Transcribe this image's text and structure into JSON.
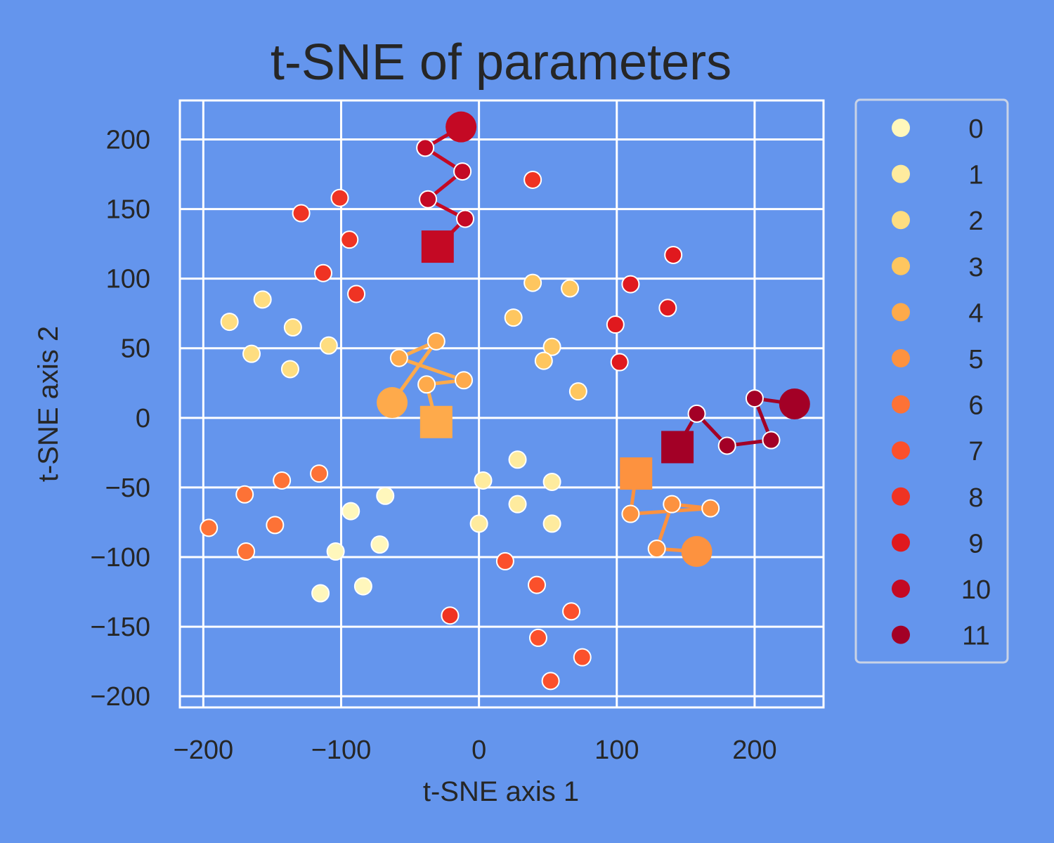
{
  "chart_data": {
    "type": "scatter",
    "title": "t-SNE of parameters",
    "xlabel": "t-SNE axis 1",
    "ylabel": "t-SNE axis 2",
    "xlim": [
      -217,
      250
    ],
    "ylim": [
      -208,
      228
    ],
    "xticks": [
      -200,
      -100,
      0,
      100,
      200
    ],
    "yticks": [
      -200,
      -150,
      -100,
      -50,
      0,
      50,
      100,
      150,
      200
    ],
    "xtick_labels": [
      "−200",
      "−100",
      "0",
      "100",
      "200"
    ],
    "ytick_labels": [
      "−200",
      "−150",
      "−100",
      "−50",
      "0",
      "50",
      "100",
      "150",
      "200"
    ],
    "grid": true,
    "legend_position": "outside-right",
    "background_color": "#6495ed",
    "legend": {
      "entries": [
        {
          "label": "0",
          "color": "#fff7bc"
        },
        {
          "label": "1",
          "color": "#feeb9e"
        },
        {
          "label": "2",
          "color": "#fedd80"
        },
        {
          "label": "3",
          "color": "#fec65f"
        },
        {
          "label": "4",
          "color": "#feaa4b"
        },
        {
          "label": "5",
          "color": "#fd923f"
        },
        {
          "label": "6",
          "color": "#fd7236"
        },
        {
          "label": "7",
          "color": "#fb502b"
        },
        {
          "label": "8",
          "color": "#ef3323"
        },
        {
          "label": "9",
          "color": "#e0191e"
        },
        {
          "label": "10",
          "color": "#c40924"
        },
        {
          "label": "11",
          "color": "#a30026"
        }
      ]
    },
    "points": [
      {
        "x": -115,
        "y": -126,
        "class": 0
      },
      {
        "x": -84,
        "y": -121,
        "class": 0
      },
      {
        "x": -72,
        "y": -91,
        "class": 0
      },
      {
        "x": -104,
        "y": -96,
        "class": 0
      },
      {
        "x": -93,
        "y": -67,
        "class": 0
      },
      {
        "x": -68,
        "y": -56,
        "class": 0
      },
      {
        "x": 3,
        "y": -45,
        "class": 1
      },
      {
        "x": 28,
        "y": -30,
        "class": 1
      },
      {
        "x": 53,
        "y": -46,
        "class": 1
      },
      {
        "x": 28,
        "y": -62,
        "class": 1
      },
      {
        "x": 0,
        "y": -76,
        "class": 1
      },
      {
        "x": 53,
        "y": -76,
        "class": 1
      },
      {
        "x": -181,
        "y": 69,
        "class": 2
      },
      {
        "x": -157,
        "y": 85,
        "class": 2
      },
      {
        "x": -165,
        "y": 46,
        "class": 2
      },
      {
        "x": -135,
        "y": 65,
        "class": 2
      },
      {
        "x": -137,
        "y": 35,
        "class": 2
      },
      {
        "x": -109,
        "y": 52,
        "class": 2
      },
      {
        "x": 39,
        "y": 97,
        "class": 3
      },
      {
        "x": 66,
        "y": 93,
        "class": 3
      },
      {
        "x": 25,
        "y": 72,
        "class": 3
      },
      {
        "x": 53,
        "y": 51,
        "class": 3
      },
      {
        "x": 47,
        "y": 41,
        "class": 3
      },
      {
        "x": 72,
        "y": 19,
        "class": 3
      },
      {
        "x": -170,
        "y": -55,
        "class": 6
      },
      {
        "x": -143,
        "y": -45,
        "class": 6
      },
      {
        "x": -116,
        "y": -40,
        "class": 6
      },
      {
        "x": -196,
        "y": -79,
        "class": 6
      },
      {
        "x": -148,
        "y": -77,
        "class": 6
      },
      {
        "x": -169,
        "y": -96,
        "class": 6
      },
      {
        "x": 19,
        "y": -103,
        "class": 7
      },
      {
        "x": 42,
        "y": -120,
        "class": 7
      },
      {
        "x": 67,
        "y": -139,
        "class": 7
      },
      {
        "x": 43,
        "y": -158,
        "class": 7
      },
      {
        "x": 75,
        "y": -172,
        "class": 7
      },
      {
        "x": 52,
        "y": -189,
        "class": 7
      },
      {
        "x": -101,
        "y": 158,
        "class": 8
      },
      {
        "x": -129,
        "y": 147,
        "class": 8
      },
      {
        "x": -94,
        "y": 128,
        "class": 8
      },
      {
        "x": -113,
        "y": 104,
        "class": 8
      },
      {
        "x": -89,
        "y": 89,
        "class": 8
      },
      {
        "x": 39,
        "y": 171,
        "class": 8
      },
      {
        "x": -21,
        "y": -142,
        "class": 8
      },
      {
        "x": 141,
        "y": 117,
        "class": 9
      },
      {
        "x": 110,
        "y": 96,
        "class": 9
      },
      {
        "x": 137,
        "y": 79,
        "class": 9
      },
      {
        "x": 99,
        "y": 67,
        "class": 9
      },
      {
        "x": 102,
        "y": 40,
        "class": 9
      }
    ],
    "trajectories": [
      {
        "class": 4,
        "color": "#feaa4b",
        "start": {
          "x": -63,
          "y": 11
        },
        "path": [
          {
            "x": -31,
            "y": 55
          },
          {
            "x": -58,
            "y": 43
          },
          {
            "x": -11,
            "y": 27
          },
          {
            "x": -38,
            "y": 24
          }
        ],
        "end": {
          "x": -31,
          "y": -3
        }
      },
      {
        "class": 5,
        "color": "#fd923f",
        "start": {
          "x": 158,
          "y": -96
        },
        "path": [
          {
            "x": 129,
            "y": -94
          },
          {
            "x": 140,
            "y": -62
          },
          {
            "x": 168,
            "y": -65
          },
          {
            "x": 110,
            "y": -69
          }
        ],
        "end": {
          "x": 114,
          "y": -40
        }
      },
      {
        "class": 10,
        "color": "#c40924",
        "start": {
          "x": -13,
          "y": 209
        },
        "path": [
          {
            "x": -39,
            "y": 194
          },
          {
            "x": -12,
            "y": 177
          },
          {
            "x": -37,
            "y": 157
          },
          {
            "x": -10,
            "y": 143
          }
        ],
        "end": {
          "x": -30,
          "y": 123
        }
      },
      {
        "class": 11,
        "color": "#a30026",
        "start": {
          "x": 229,
          "y": 10
        },
        "path": [
          {
            "x": 200,
            "y": 14
          },
          {
            "x": 212,
            "y": -16
          },
          {
            "x": 180,
            "y": -20
          },
          {
            "x": 158,
            "y": 3
          }
        ],
        "end": {
          "x": 144,
          "y": -21
        }
      }
    ]
  }
}
